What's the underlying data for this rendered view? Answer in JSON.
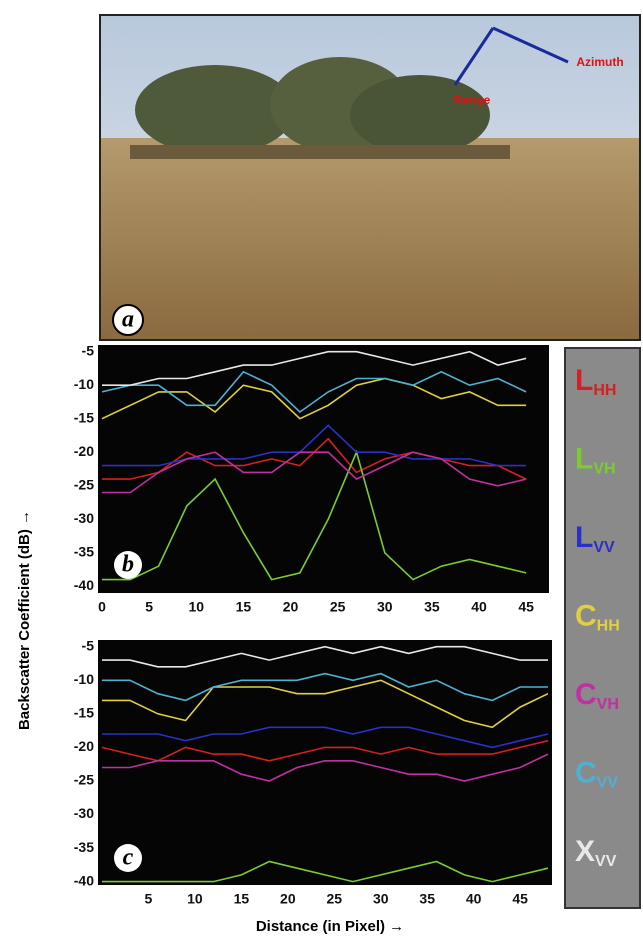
{
  "photo": {
    "label": "a",
    "annotations": [
      "Range",
      "Azimuth"
    ]
  },
  "y_label": "Backscatter  Coefficient (dB) →",
  "chart_data": [
    {
      "type": "line",
      "annotation": "b",
      "x": [
        0,
        3,
        6,
        9,
        12,
        15,
        18,
        21,
        24,
        27,
        30,
        33,
        36,
        39,
        42,
        45
      ],
      "xlim": [
        0,
        47
      ],
      "xticks": [
        0,
        5,
        10,
        15,
        20,
        25,
        30,
        35,
        40,
        45
      ],
      "ylim": [
        -41,
        -4
      ],
      "yticks": [
        -5,
        -10,
        -15,
        -20,
        -25,
        -30,
        -35,
        -40
      ],
      "series": [
        {
          "name": "LHH",
          "color": "#d42020",
          "values": [
            -24,
            -24,
            -23,
            -20,
            -22,
            -22,
            -21,
            -22,
            -18,
            -23,
            -21,
            -20,
            -21,
            -22,
            -22,
            -24
          ]
        },
        {
          "name": "LVH",
          "color": "#7ccc30",
          "values": [
            -39,
            -39,
            -37,
            -28,
            -24,
            -32,
            -39,
            -38,
            -30,
            -20,
            -35,
            -39,
            -37,
            -36,
            -37,
            -38
          ]
        },
        {
          "name": "LVV",
          "color": "#2830c8",
          "values": [
            -22,
            -22,
            -22,
            -21,
            -21,
            -21,
            -20,
            -20,
            -16,
            -20,
            -20,
            -21,
            -21,
            -21,
            -22,
            -22
          ]
        },
        {
          "name": "CHH",
          "color": "#e0d040",
          "values": [
            -15,
            -13,
            -11,
            -11,
            -14,
            -10,
            -11,
            -15,
            -13,
            -10,
            -9,
            -10,
            -12,
            -11,
            -13,
            -13
          ]
        },
        {
          "name": "CVH",
          "color": "#c030a0",
          "values": [
            -26,
            -26,
            -23,
            -21,
            -20,
            -23,
            -23,
            -20,
            -20,
            -24,
            -22,
            -20,
            -21,
            -24,
            -25,
            -24
          ]
        },
        {
          "name": "CVV",
          "color": "#50b0d0",
          "values": [
            -11,
            -10,
            -10,
            -13,
            -13,
            -8,
            -10,
            -14,
            -11,
            -9,
            -9,
            -10,
            -8,
            -10,
            -9,
            -11
          ]
        },
        {
          "name": "XVV",
          "color": "#e8e8e8",
          "values": [
            -10,
            -10,
            -9,
            -9,
            -8,
            -7,
            -7,
            -6,
            -5,
            -5,
            -6,
            -7,
            -6,
            -5,
            -7,
            -6
          ]
        }
      ]
    },
    {
      "type": "line",
      "annotation": "c",
      "x_label": "Distance (in Pixel) →",
      "x": [
        0,
        3,
        6,
        9,
        12,
        15,
        18,
        21,
        24,
        27,
        30,
        33,
        36,
        39,
        42,
        45,
        48
      ],
      "xlim": [
        0,
        48
      ],
      "xticks": [
        5,
        10,
        15,
        20,
        25,
        30,
        35,
        40,
        45
      ],
      "ylim": [
        -40.5,
        -4
      ],
      "yticks": [
        -5,
        -10,
        -15,
        -20,
        -25,
        -30,
        -35,
        -40
      ],
      "series": [
        {
          "color": "#d42020",
          "values": [
            -20,
            -21,
            -22,
            -20,
            -21,
            -21,
            -22,
            -21,
            -20,
            -20,
            -21,
            -20,
            -21,
            -21,
            -21,
            -20,
            -19
          ]
        },
        {
          "color": "#7ccc30",
          "values": [
            -40,
            -40,
            -40,
            -40,
            -40,
            -39,
            -37,
            -38,
            -39,
            -40,
            -39,
            -38,
            -37,
            -39,
            -40,
            -39,
            -38
          ]
        },
        {
          "color": "#2830c8",
          "values": [
            -18,
            -18,
            -18,
            -19,
            -18,
            -18,
            -17,
            -17,
            -17,
            -18,
            -17,
            -17,
            -18,
            -19,
            -20,
            -19,
            -18
          ]
        },
        {
          "color": "#e0d040",
          "values": [
            -13,
            -13,
            -15,
            -16,
            -11,
            -11,
            -11,
            -12,
            -12,
            -11,
            -10,
            -12,
            -14,
            -16,
            -17,
            -14,
            -12
          ]
        },
        {
          "color": "#c030a0",
          "values": [
            -23,
            -23,
            -22,
            -22,
            -22,
            -24,
            -25,
            -23,
            -22,
            -22,
            -23,
            -24,
            -24,
            -25,
            -24,
            -23,
            -21
          ]
        },
        {
          "color": "#50b0d0",
          "values": [
            -10,
            -10,
            -12,
            -13,
            -11,
            -10,
            -10,
            -10,
            -9,
            -10,
            -9,
            -11,
            -10,
            -12,
            -13,
            -11,
            -11
          ]
        },
        {
          "color": "#e8e8e8",
          "values": [
            -7,
            -7,
            -8,
            -8,
            -7,
            -6,
            -7,
            -6,
            -5,
            -6,
            -5,
            -6,
            -5,
            -5,
            -6,
            -7,
            -7
          ]
        }
      ]
    }
  ]
}
